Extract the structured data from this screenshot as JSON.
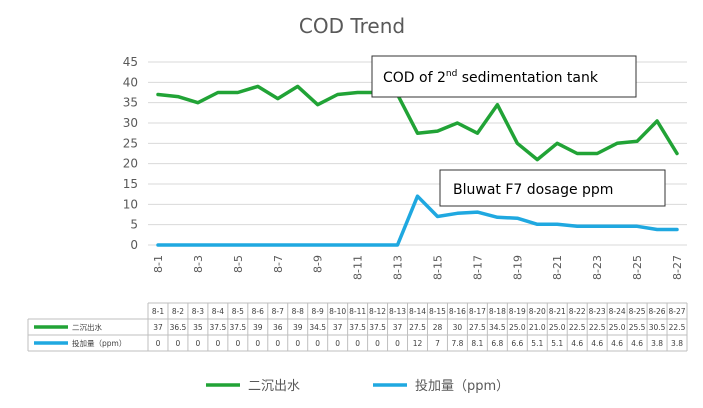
{
  "chart_data": {
    "type": "line",
    "title": "COD Trend",
    "ylim": [
      0,
      45
    ],
    "yticks": [
      0,
      5,
      10,
      15,
      20,
      25,
      30,
      35,
      40,
      45
    ],
    "grid": true,
    "x": [
      "8-1",
      "8-2",
      "8-3",
      "8-4",
      "8-5",
      "8-6",
      "8-7",
      "8-8",
      "8-9",
      "8-10",
      "8-11",
      "8-12",
      "8-13",
      "8-14",
      "8-15",
      "8-16",
      "8-17",
      "8-18",
      "8-19",
      "8-20",
      "8-21",
      "8-22",
      "8-23",
      "8-24",
      "8-25",
      "8-26",
      "8-27"
    ],
    "x_tick_labels": [
      "8-1",
      "8-3",
      "8-5",
      "8-7",
      "8-9",
      "8-11",
      "8-13",
      "8-15",
      "8-17",
      "8-19",
      "8-21",
      "8-23",
      "8-25",
      "8-27"
    ],
    "series": [
      {
        "name": "二沉出水",
        "color": "#21a336",
        "values": [
          37,
          36.5,
          35,
          37.5,
          37.5,
          39,
          36,
          39,
          34.5,
          37,
          37.5,
          37.5,
          37,
          27.5,
          28,
          30,
          27.5,
          34.5,
          25.0,
          21.0,
          25.0,
          22.5,
          22.5,
          25.0,
          25.5,
          30.5,
          22.5
        ],
        "table_values": [
          "37",
          "36.5",
          "35",
          "37.5",
          "37.5",
          "39",
          "36",
          "39",
          "34.5",
          "37",
          "37.5",
          "37.5",
          "37",
          "27.5",
          "28",
          "30",
          "27.5",
          "34.5",
          "25.0",
          "21.0",
          "25.0",
          "22.5",
          "22.5",
          "25.0",
          "25.5",
          "30.5",
          "22.5"
        ]
      },
      {
        "name": "投加量（ppm）",
        "color": "#1fa8e0",
        "values": [
          0,
          0,
          0,
          0,
          0,
          0,
          0,
          0,
          0,
          0,
          0,
          0,
          0,
          12,
          7,
          7.8,
          8.1,
          6.8,
          6.6,
          5.1,
          5.1,
          4.6,
          4.6,
          4.6,
          4.6,
          3.8,
          3.8
        ],
        "table_values": [
          "0",
          "0",
          "0",
          "0",
          "0",
          "0",
          "0",
          "0",
          "0",
          "0",
          "0",
          "0",
          "0",
          "12",
          "7",
          "7.8",
          "8.1",
          "6.8",
          "6.6",
          "5.1",
          "5.1",
          "4.6",
          "4.6",
          "4.6",
          "4.6",
          "3.8",
          "3.8"
        ]
      }
    ],
    "annotations": [
      {
        "base": "COD of 2",
        "sup": "nd",
        "rest": " sedimentation tank"
      },
      {
        "text": "Bluwat F7 dosage ppm"
      }
    ],
    "legend_position": "bottom"
  }
}
